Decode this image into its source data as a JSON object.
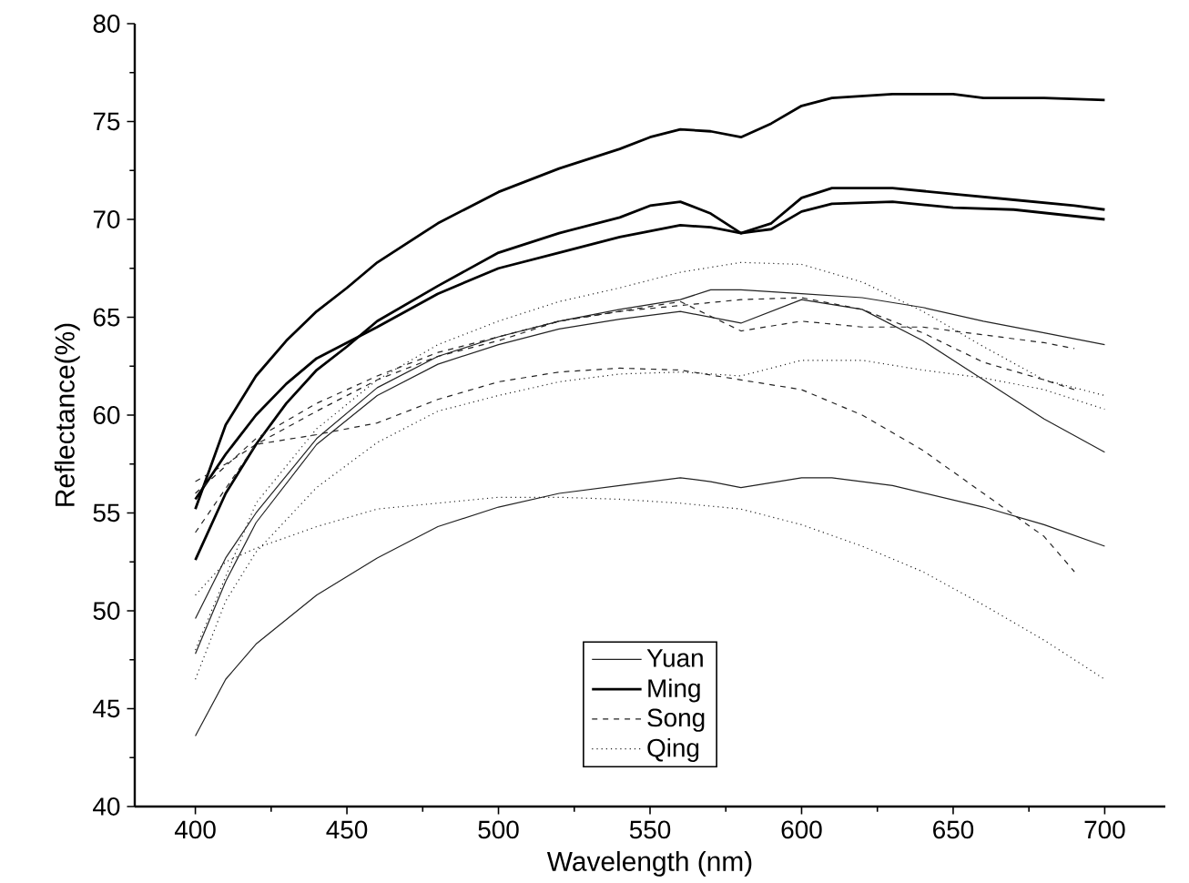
{
  "chart_data": {
    "type": "line",
    "xlabel": "Wavelength (nm)",
    "ylabel": "Reflectance(%)",
    "xlim": [
      380,
      720
    ],
    "ylim": [
      40,
      80
    ],
    "xticks": [
      400,
      450,
      500,
      550,
      600,
      650,
      700
    ],
    "yticks": [
      40,
      45,
      50,
      55,
      60,
      65,
      70,
      75,
      80
    ],
    "legend": "bottom",
    "grid": false,
    "marker": "none",
    "series": [
      {
        "name": "Yuan",
        "color": "#222222",
        "line_style": "solid",
        "x": [
          400,
          410,
          420,
          440,
          460,
          480,
          500,
          520,
          540,
          560,
          570,
          580,
          600,
          610,
          630,
          660,
          680,
          700
        ],
        "values": [
          43.6,
          46.5,
          48.3,
          50.8,
          52.7,
          54.3,
          55.3,
          56.0,
          56.4,
          56.8,
          56.6,
          56.3,
          56.8,
          56.8,
          56.4,
          55.3,
          54.4,
          53.3
        ]
      },
      {
        "name": "Ming",
        "color": "#000000",
        "line_style": "solid",
        "x": [
          400,
          410,
          420,
          430,
          440,
          450,
          460,
          480,
          500,
          520,
          540,
          550,
          560,
          570,
          580,
          590,
          600,
          610,
          630,
          650,
          660,
          680,
          700
        ],
        "values": [
          55.2,
          59.5,
          62.0,
          63.8,
          65.3,
          66.5,
          67.8,
          69.8,
          71.4,
          72.6,
          73.6,
          74.2,
          74.6,
          74.5,
          74.2,
          74.9,
          75.8,
          76.2,
          76.4,
          76.4,
          76.2,
          76.2,
          76.1
        ]
      },
      {
        "name": "Song",
        "color": "#222222",
        "line_style": "dashed",
        "x": [
          400,
          410,
          420,
          440,
          460,
          480,
          500,
          520,
          540,
          560,
          580,
          600,
          620,
          640,
          660,
          680,
          690
        ],
        "values": [
          56.6,
          57.5,
          58.5,
          60.2,
          61.8,
          63.0,
          63.8,
          64.8,
          65.3,
          65.8,
          64.3,
          64.8,
          64.5,
          64.5,
          64.1,
          63.7,
          63.4
        ]
      },
      {
        "name": "Qing",
        "color": "#222222",
        "line_style": "dotted",
        "x": [
          400,
          410,
          420,
          440,
          460,
          480,
          500,
          520,
          540,
          560,
          580,
          600,
          620,
          640,
          660,
          680,
          700
        ],
        "values": [
          46.5,
          50.5,
          53.0,
          56.3,
          58.6,
          60.2,
          61.0,
          61.7,
          62.1,
          62.2,
          62.0,
          62.8,
          62.8,
          62.3,
          61.9,
          61.3,
          60.3
        ]
      },
      {
        "color": "#222222",
        "line_style": "solid",
        "x": [
          400,
          410,
          420,
          440,
          460,
          480,
          500,
          520,
          540,
          560,
          570,
          580,
          600,
          620,
          640,
          660,
          680,
          700
        ],
        "values": [
          49.6,
          52.7,
          55.0,
          58.8,
          61.4,
          63.0,
          64.0,
          64.8,
          65.4,
          65.9,
          66.4,
          66.4,
          66.2,
          66.0,
          65.5,
          64.8,
          64.2,
          63.6
        ]
      },
      {
        "color": "#222222",
        "line_style": "solid",
        "x": [
          400,
          410,
          420,
          440,
          460,
          480,
          500,
          520,
          540,
          560,
          580,
          600,
          620,
          640,
          660,
          680,
          700
        ],
        "values": [
          47.8,
          51.5,
          54.5,
          58.5,
          61.0,
          62.6,
          63.6,
          64.4,
          64.9,
          65.3,
          64.7,
          65.9,
          65.4,
          63.8,
          61.8,
          59.8,
          58.1
        ]
      },
      {
        "color": "#000000",
        "line_style": "solid",
        "x": [
          400,
          410,
          420,
          430,
          440,
          460,
          480,
          500,
          520,
          540,
          560,
          570,
          580,
          590,
          600,
          610,
          630,
          650,
          670,
          700
        ],
        "values": [
          55.7,
          58.0,
          60.0,
          61.6,
          62.9,
          64.5,
          66.2,
          67.5,
          68.3,
          69.1,
          69.7,
          69.6,
          69.3,
          69.5,
          70.4,
          70.8,
          70.9,
          70.6,
          70.5,
          70.0
        ]
      },
      {
        "color": "#000000",
        "line_style": "solid",
        "x": [
          400,
          410,
          420,
          430,
          440,
          450,
          460,
          480,
          500,
          520,
          540,
          550,
          560,
          570,
          580,
          590,
          600,
          610,
          630,
          650,
          670,
          690,
          700
        ],
        "values": [
          52.6,
          56.0,
          58.5,
          60.6,
          62.3,
          63.5,
          64.8,
          66.6,
          68.3,
          69.3,
          70.1,
          70.7,
          70.9,
          70.3,
          69.3,
          69.8,
          71.1,
          71.6,
          71.6,
          71.3,
          71.0,
          70.7,
          70.5
        ]
      },
      {
        "color": "#222222",
        "line_style": "dashed",
        "x": [
          400,
          420,
          440,
          460,
          480,
          500,
          520,
          540,
          560,
          580,
          600,
          620,
          640,
          660,
          680,
          690
        ],
        "values": [
          54.0,
          58.5,
          59.0,
          59.6,
          60.8,
          61.7,
          62.2,
          62.4,
          62.3,
          61.8,
          61.3,
          60.0,
          58.2,
          56.0,
          53.8,
          52.0
        ]
      },
      {
        "color": "#222222",
        "line_style": "dashed",
        "x": [
          400,
          420,
          440,
          460,
          480,
          500,
          520,
          540,
          560,
          580,
          600,
          620,
          640,
          660,
          680,
          690
        ],
        "values": [
          56.0,
          58.8,
          60.6,
          62.0,
          63.2,
          64.0,
          64.8,
          65.3,
          65.6,
          65.9,
          66.0,
          65.4,
          64.2,
          62.7,
          61.8,
          61.3
        ]
      },
      {
        "color": "#222222",
        "line_style": "dotted",
        "x": [
          400,
          410,
          420,
          440,
          460,
          480,
          500,
          520,
          540,
          560,
          580,
          600,
          620,
          640,
          660,
          680,
          700
        ],
        "values": [
          50.8,
          52.5,
          53.2,
          54.3,
          55.2,
          55.5,
          55.8,
          55.8,
          55.7,
          55.5,
          55.2,
          54.4,
          53.3,
          52.0,
          50.3,
          48.5,
          46.5
        ]
      },
      {
        "color": "#222222",
        "line_style": "dotted",
        "x": [
          400,
          420,
          440,
          460,
          480,
          500,
          520,
          540,
          560,
          580,
          600,
          620,
          640,
          660,
          680,
          700
        ],
        "values": [
          48.0,
          55.5,
          59.3,
          61.8,
          63.6,
          64.8,
          65.8,
          66.5,
          67.3,
          67.8,
          67.7,
          66.8,
          65.3,
          63.5,
          61.8,
          61.0
        ]
      }
    ]
  }
}
